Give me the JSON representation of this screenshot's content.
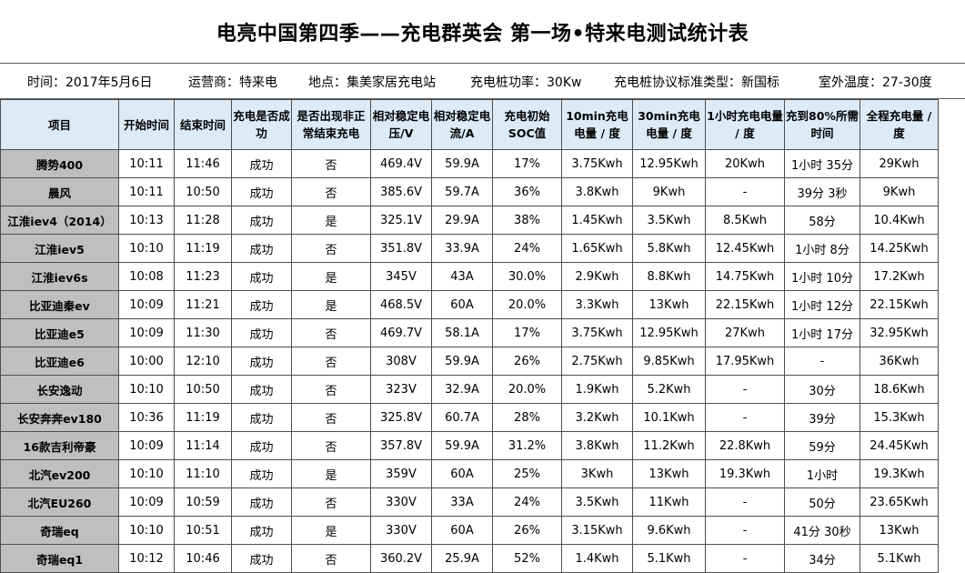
{
  "title": "电亮中国第四季——充电群英会  第一场•特来电测试统计表",
  "info": {
    "date": "时间：2017年5月6日",
    "operator": "运营商：特来电",
    "location": "地点：集美家居充电站",
    "power": "充电桩功率：30Kw",
    "protocol": "充电桩协议标准类型：新国标",
    "temperature": "室外温度：27-30度"
  },
  "headers": [
    "项目",
    "开始时间",
    "结束时间",
    "充电是否成功",
    "是否出现非正常结束充电",
    "相对稳定电压/V",
    "相对稳定电流/A",
    "充电初始SOC值",
    "10min充电电量 / 度",
    "30min充电电量 / 度",
    "1小时充电电量 / 度",
    "充到80%所需时间",
    "全程充电量 / 度"
  ],
  "rows": [
    [
      "腾势400",
      "10:11",
      "11:46",
      "成功",
      "否",
      "469.4V",
      "59.9A",
      "17%",
      "3.75Kwh",
      "12.95Kwh",
      "20Kwh",
      "1小时 35分",
      "29Kwh"
    ],
    [
      "晨风",
      "10:11",
      "10:50",
      "成功",
      "否",
      "385.6V",
      "59.7A",
      "36%",
      "3.8Kwh",
      "9Kwh",
      "-",
      "39分 3秒",
      "9Kwh"
    ],
    [
      "江淮iev4（2014）",
      "10:13",
      "11:28",
      "成功",
      "是",
      "325.1V",
      "29.9A",
      "38%",
      "1.45Kwh",
      "3.5Kwh",
      "8.5Kwh",
      "58分",
      "10.4Kwh"
    ],
    [
      "江淮iev5",
      "10:10",
      "11:19",
      "成功",
      "否",
      "351.8V",
      "33.9A",
      "24%",
      "1.65Kwh",
      "5.8Kwh",
      "12.45Kwh",
      "1小时 8分",
      "14.25Kwh"
    ],
    [
      "江淮iev6s",
      "10:08",
      "11:23",
      "成功",
      "是",
      "345V",
      "43A",
      "30.0%",
      "2.9Kwh",
      "8.8Kwh",
      "14.75Kwh",
      "1小时 10分",
      "17.2Kwh"
    ],
    [
      "比亚迪秦ev",
      "10:09",
      "11:21",
      "成功",
      "是",
      "468.5V",
      "60A",
      "20.0%",
      "3.3Kwh",
      "13Kwh",
      "22.15Kwh",
      "1小时 12分",
      "22.15Kwh"
    ],
    [
      "比亚迪e5",
      "10:09",
      "11:30",
      "成功",
      "否",
      "469.7V",
      "58.1A",
      "17%",
      "3.75Kwh",
      "12.95Kwh",
      "27Kwh",
      "1小时 17分",
      "32.95Kwh"
    ],
    [
      "比亚迪e6",
      "10:00",
      "12:10",
      "成功",
      "否",
      "308V",
      "59.9A",
      "26%",
      "2.75Kwh",
      "9.85Kwh",
      "17.95Kwh",
      "-",
      "36Kwh"
    ],
    [
      "长安逸动",
      "10:10",
      "10:50",
      "成功",
      "否",
      "323V",
      "32.9A",
      "20.0%",
      "1.9Kwh",
      "5.2Kwh",
      "-",
      "30分",
      "18.6Kwh"
    ],
    [
      "长安奔奔ev180",
      "10:36",
      "11:19",
      "成功",
      "否",
      "325.8V",
      "60.7A",
      "28%",
      "3.2Kwh",
      "10.1Kwh",
      "-",
      "39分",
      "15.3Kwh"
    ],
    [
      "16款吉利帝豪",
      "10:09",
      "11:14",
      "成功",
      "否",
      "357.8V",
      "59.9A",
      "31.2%",
      "3.8Kwh",
      "11.2Kwh",
      "22.8Kwh",
      "59分",
      "24.45Kwh"
    ],
    [
      "北汽ev200",
      "10:10",
      "11:10",
      "成功",
      "是",
      "359V",
      "60A",
      "25%",
      "3Kwh",
      "13Kwh",
      "19.3Kwh",
      "1小时",
      "19.3Kwh"
    ],
    [
      "北汽EU260",
      "10:09",
      "10:59",
      "成功",
      "否",
      "330V",
      "33A",
      "24%",
      "3.5Kwh",
      "11Kwh",
      "-",
      "50分",
      "23.65Kwh"
    ],
    [
      "奇瑞eq",
      "10:10",
      "10:51",
      "成功",
      "是",
      "330V",
      "60A",
      "26%",
      "3.15Kwh",
      "9.6Kwh",
      "-",
      "41分 30秒",
      "13Kwh"
    ],
    [
      "奇瑞eq1",
      "10:12",
      "10:46",
      "成功",
      "否",
      "360.2V",
      "25.9A",
      "52%",
      "1.4Kwh",
      "5.1Kwh",
      "-",
      "34分",
      "5.1Kwh"
    ]
  ]
}
